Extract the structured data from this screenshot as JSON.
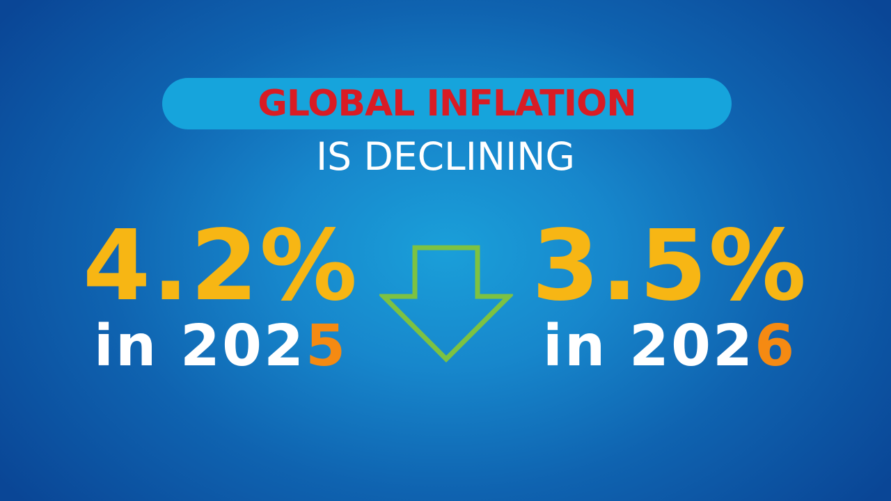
{
  "headline": "GLOBAL INFLATION",
  "subheadline": "IS DECLINING",
  "stats": [
    {
      "value": "4.2%",
      "year_prefix": "in 202",
      "year_last_digit": "5"
    },
    {
      "value": "3.5%",
      "year_prefix": "in 202",
      "year_last_digit": "6"
    }
  ],
  "icons": {
    "direction": "down-arrow-icon"
  },
  "colors": {
    "headline": "#d91c24",
    "pill": "#16a4dc",
    "value": "#f7b614",
    "year_highlight": "#f58a12",
    "arrow": "#7dc242"
  }
}
